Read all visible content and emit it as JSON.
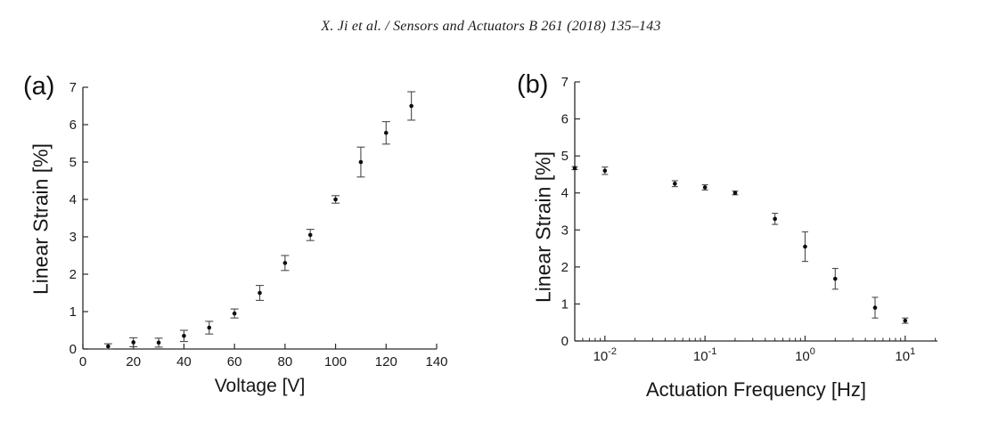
{
  "header": {
    "citation": "X. Ji et al. / Sensors and Actuators B 261 (2018) 135–143"
  },
  "chart_data": [
    {
      "type": "scatter",
      "panel_label": "(a)",
      "title": "",
      "xlabel": "Voltage [V]",
      "ylabel": "Linear Strain [%]",
      "x_scale": "linear",
      "xlim": [
        0,
        140
      ],
      "ylim": [
        0,
        7
      ],
      "x_ticks": [
        0,
        20,
        40,
        60,
        80,
        100,
        120,
        140
      ],
      "y_ticks": [
        0,
        1,
        2,
        3,
        4,
        5,
        6,
        7
      ],
      "grid": false,
      "legend": "none",
      "marker_color": "#0d0d0d",
      "error_bar_color": "#4a4a4a",
      "axis_color": "#2b2b2b",
      "points": [
        {
          "x": 10,
          "y": 0.07,
          "e": 0.07
        },
        {
          "x": 20,
          "y": 0.18,
          "e": 0.12
        },
        {
          "x": 30,
          "y": 0.17,
          "e": 0.12
        },
        {
          "x": 40,
          "y": 0.35,
          "e": 0.15
        },
        {
          "x": 50,
          "y": 0.57,
          "e": 0.17
        },
        {
          "x": 60,
          "y": 0.95,
          "e": 0.12
        },
        {
          "x": 70,
          "y": 1.5,
          "e": 0.2
        },
        {
          "x": 80,
          "y": 2.3,
          "e": 0.2
        },
        {
          "x": 90,
          "y": 3.05,
          "e": 0.15
        },
        {
          "x": 100,
          "y": 4.0,
          "e": 0.1
        },
        {
          "x": 110,
          "y": 5.0,
          "e": 0.4
        },
        {
          "x": 120,
          "y": 5.78,
          "e": 0.3
        },
        {
          "x": 130,
          "y": 6.5,
          "e": 0.38
        }
      ]
    },
    {
      "type": "scatter",
      "panel_label": "(b)",
      "title": "",
      "xlabel": "Actuation Frequency [Hz]",
      "ylabel": "Linear Strain [%]",
      "x_scale": "log",
      "xlim": [
        0.005,
        21
      ],
      "ylim": [
        0,
        7
      ],
      "x_ticks": [
        {
          "v": 0.01,
          "label_base": "10",
          "label_exp": "-2"
        },
        {
          "v": 0.1,
          "label_base": "10",
          "label_exp": "-1"
        },
        {
          "v": 1,
          "label_base": "10",
          "label_exp": "0"
        },
        {
          "v": 10,
          "label_base": "10",
          "label_exp": "1"
        }
      ],
      "y_ticks": [
        0,
        1,
        2,
        3,
        4,
        5,
        6,
        7
      ],
      "grid": false,
      "legend": "none",
      "marker_color": "#0d0d0d",
      "error_bar_color": "#4a4a4a",
      "axis_color": "#2b2b2b",
      "points": [
        {
          "x": 0.005,
          "y": 4.67,
          "e": 0.04
        },
        {
          "x": 0.01,
          "y": 4.6,
          "e": 0.1
        },
        {
          "x": 0.05,
          "y": 4.25,
          "e": 0.08
        },
        {
          "x": 0.1,
          "y": 4.15,
          "e": 0.07
        },
        {
          "x": 0.2,
          "y": 4.0,
          "e": 0.05
        },
        {
          "x": 0.5,
          "y": 3.3,
          "e": 0.15
        },
        {
          "x": 1,
          "y": 2.55,
          "e": 0.4
        },
        {
          "x": 2,
          "y": 1.68,
          "e": 0.28
        },
        {
          "x": 5,
          "y": 0.9,
          "e": 0.28
        },
        {
          "x": 10,
          "y": 0.55,
          "e": 0.07
        }
      ]
    }
  ]
}
